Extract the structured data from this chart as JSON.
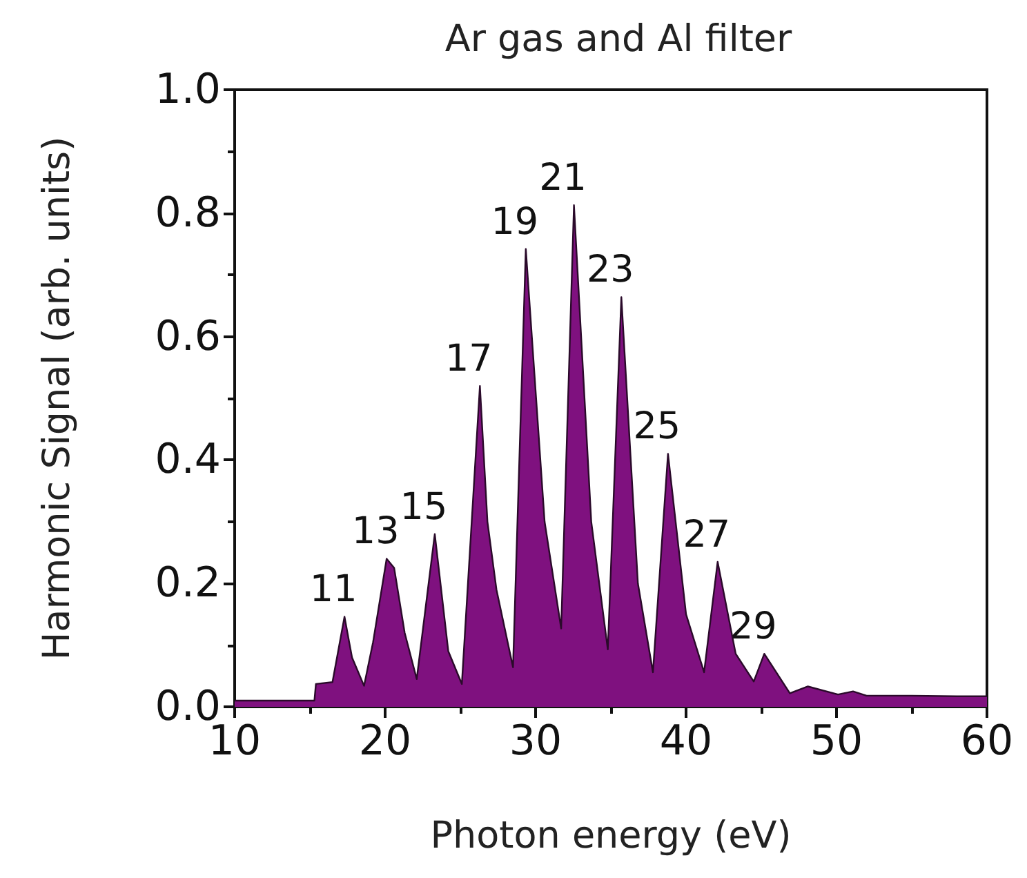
{
  "chart_data": {
    "type": "area",
    "title": "Ar gas and Al filter",
    "xlabel": "Photon energy (eV)",
    "ylabel": "Harmonic Signal (arb. units)",
    "x": [
      10,
      12,
      14,
      15.3,
      15.4,
      16.5,
      17.3,
      17.8,
      18.6,
      19.2,
      20.1,
      20.6,
      21.3,
      22.1,
      23.3,
      24.2,
      25.1,
      26.3,
      26.8,
      27.4,
      28.5,
      29.35,
      30.6,
      31.7,
      32.55,
      33.7,
      34.8,
      35.7,
      36.8,
      37.8,
      38.8,
      40.0,
      41.2,
      42.1,
      43.3,
      44.5,
      45.2,
      46.9,
      48.1,
      50.1,
      51.1,
      52,
      55,
      58,
      60
    ],
    "series": [
      {
        "color": "#7f117f",
        "values": [
          0.01,
          0.01,
          0.01,
          0.01,
          0.037,
          0.04,
          0.146,
          0.08,
          0.034,
          0.105,
          0.24,
          0.225,
          0.12,
          0.045,
          0.28,
          0.09,
          0.037,
          0.52,
          0.3,
          0.19,
          0.064,
          0.742,
          0.3,
          0.127,
          0.813,
          0.3,
          0.093,
          0.664,
          0.2,
          0.056,
          0.41,
          0.15,
          0.056,
          0.235,
          0.086,
          0.041,
          0.086,
          0.022,
          0.033,
          0.02,
          0.025,
          0.018,
          0.018,
          0.017,
          0.017
        ]
      }
    ],
    "xlim": [
      10,
      60
    ],
    "xticks": [
      10,
      20,
      30,
      40,
      50,
      60
    ],
    "ylim": [
      0,
      1
    ],
    "yticks": [
      {
        "value": 0,
        "label": "0.0"
      },
      0.2,
      0.4,
      0.6,
      0.8,
      {
        "value": 1,
        "label": "1.0"
      }
    ],
    "annotations": [
      {
        "text": "11",
        "x": 17.3,
        "y": 0.146
      },
      {
        "text": "13",
        "x": 20.1,
        "y": 0.24
      },
      {
        "text": "15",
        "x": 23.3,
        "y": 0.28
      },
      {
        "text": "17",
        "x": 26.3,
        "y": 0.52
      },
      {
        "text": "19",
        "x": 29.35,
        "y": 0.742
      },
      {
        "text": "21",
        "x": 32.55,
        "y": 0.813
      },
      {
        "text": "23",
        "x": 35.7,
        "y": 0.664
      },
      {
        "text": "25",
        "x": 38.8,
        "y": 0.41
      },
      {
        "text": "27",
        "x": 42.1,
        "y": 0.235
      },
      {
        "text": "29",
        "x": 45.2,
        "y": 0.086
      }
    ],
    "grid": false
  }
}
